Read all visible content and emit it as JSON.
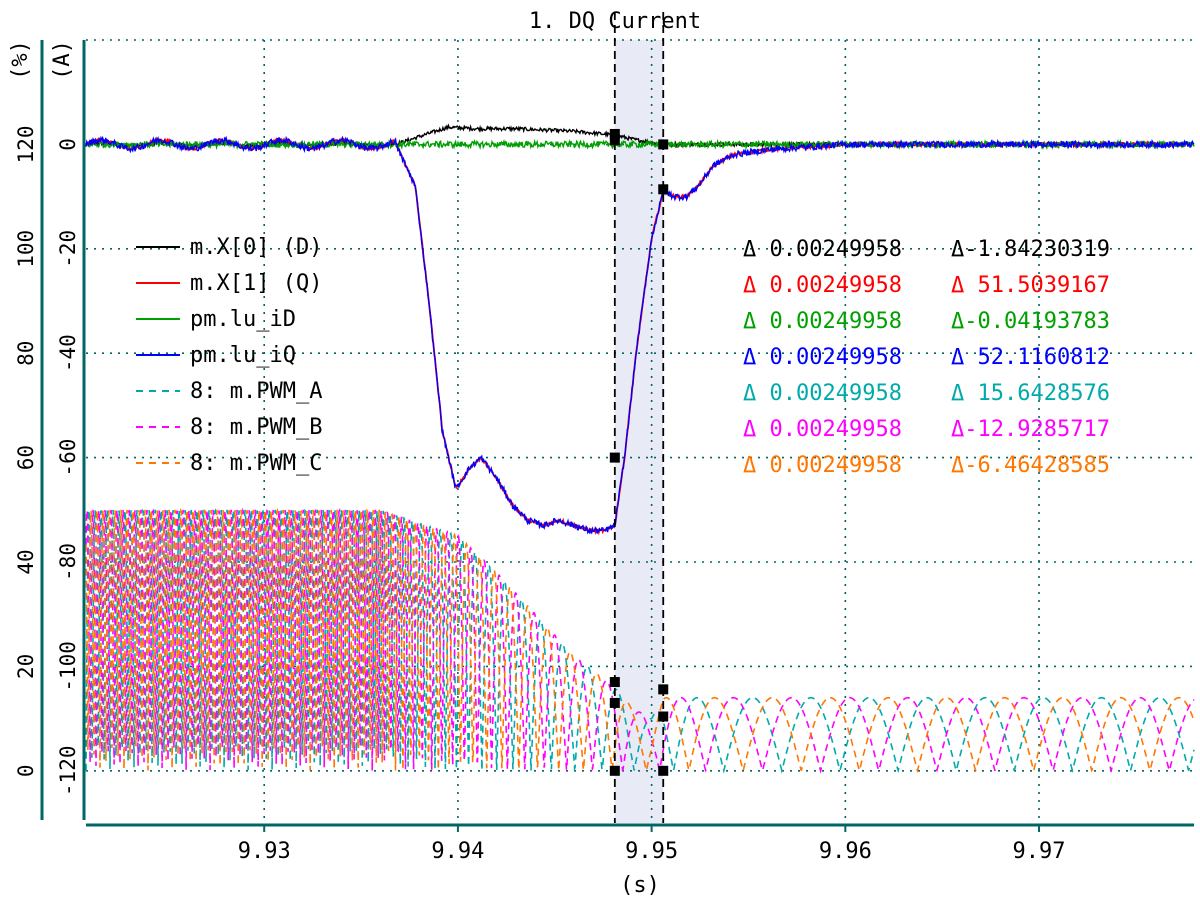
{
  "chart_data": {
    "type": "line",
    "title": "1. DQ Current",
    "xlabel": "(s)",
    "ylabel_left": "(%)",
    "ylabel_right": "(A)",
    "xlim": [
      9.9208,
      9.978
    ],
    "ylim_A": [
      -130,
      20
    ],
    "ylim_pct": [
      -10,
      140
    ],
    "x_ticks": [
      "9.93",
      "9.94",
      "9.95",
      "9.96",
      "9.97"
    ],
    "x_tick_values": [
      9.93,
      9.94,
      9.95,
      9.96,
      9.97
    ],
    "y_ticks_pct": [
      "0",
      "20",
      "40",
      "60",
      "80",
      "100",
      "120"
    ],
    "y_ticks_A": [
      "-120",
      "-100",
      "-80",
      "-60",
      "-40",
      "-20",
      "0"
    ],
    "grid": true,
    "legend_position": "left",
    "cursor_positions": [
      9.9481,
      9.9506
    ],
    "series": [
      {
        "name": "m.X[0] (D)",
        "color": "#000000",
        "axis": "A",
        "style": "solid"
      },
      {
        "name": "m.X[1] (Q)",
        "color": "#ff0000",
        "axis": "A",
        "style": "solid"
      },
      {
        "name": "pm.lu_iD",
        "color": "#00a000",
        "axis": "A",
        "style": "solid"
      },
      {
        "name": "pm.lu_iQ",
        "color": "#0000ff",
        "axis": "A",
        "style": "solid"
      },
      {
        "name": "8: m.PWM_A",
        "color": "#00aaaa",
        "axis": "pct",
        "style": "dashed"
      },
      {
        "name": "8: m.PWM_B",
        "color": "#ff00ff",
        "axis": "pct",
        "style": "dashed"
      },
      {
        "name": "8: m.PWM_C",
        "color": "#ff7700",
        "axis": "pct",
        "style": "dashed"
      }
    ],
    "q_profile": {
      "x": [
        9.9208,
        9.9368,
        9.9378,
        9.9385,
        9.9392,
        9.9399,
        9.9406,
        9.9412,
        9.942,
        9.9428,
        9.9436,
        9.9444,
        9.9452,
        9.946,
        9.9468,
        9.9476,
        9.9481,
        9.9486,
        9.9492,
        9.95,
        9.9506,
        9.9512,
        9.9518,
        9.9524,
        9.9532,
        9.9542,
        9.956,
        9.96,
        9.978
      ],
      "y": [
        0,
        0,
        -8,
        -30,
        -55,
        -66,
        -62,
        -60,
        -64,
        -69,
        -72,
        -73,
        -72,
        -73,
        -74,
        -74,
        -73,
        -60,
        -40,
        -18,
        -9,
        -10,
        -10,
        -8,
        -4,
        -2,
        -1,
        0,
        0
      ]
    },
    "d_profile": {
      "x": [
        9.9208,
        9.9368,
        9.938,
        9.9395,
        9.941,
        9.943,
        9.946,
        9.9481,
        9.949,
        9.9506,
        9.978
      ],
      "y": [
        0,
        0,
        1.5,
        3.3,
        3.0,
        3.0,
        2.5,
        1.8,
        1.0,
        0,
        0
      ]
    },
    "pwm_amplitude_profile": {
      "x": [
        9.9208,
        9.936,
        9.94,
        9.942,
        9.944,
        9.946,
        9.9481,
        9.949,
        9.95,
        9.9506,
        9.978
      ],
      "y": [
        50,
        50,
        45,
        38,
        30,
        22,
        16,
        12,
        10,
        14,
        14
      ]
    },
    "pwm_period_profile": {
      "x": [
        9.9208,
        9.936,
        9.94,
        9.944,
        9.948,
        9.95,
        9.954,
        9.978
      ],
      "y": [
        0.00031,
        0.00031,
        0.0006,
        0.001,
        0.0016,
        0.002,
        0.003,
        0.003
      ]
    },
    "cursor_markers": [
      {
        "x": 9.9481,
        "y": 0.8,
        "axis": "A"
      },
      {
        "x": 9.9481,
        "y": 2.0,
        "axis": "A"
      },
      {
        "x": 9.9481,
        "y": -60,
        "axis": "A"
      },
      {
        "x": 9.9506,
        "y": 0,
        "axis": "A"
      },
      {
        "x": 9.9506,
        "y": -8.6,
        "axis": "A"
      },
      {
        "x": 9.9481,
        "y": 17,
        "axis": "pct"
      },
      {
        "x": 9.9481,
        "y": 13,
        "axis": "pct"
      },
      {
        "x": 9.9481,
        "y": 0,
        "axis": "pct"
      },
      {
        "x": 9.9506,
        "y": 15.6,
        "axis": "pct"
      },
      {
        "x": 9.9506,
        "y": 10.4,
        "axis": "pct"
      },
      {
        "x": 9.9506,
        "y": 0,
        "axis": "pct"
      }
    ],
    "delta_readouts": [
      {
        "dx": "Δ 0.00249958",
        "dy": "Δ-1.84230319",
        "color": "#000000"
      },
      {
        "dx": "Δ 0.00249958",
        "dy": "Δ 51.5039167",
        "color": "#ff0000"
      },
      {
        "dx": "Δ 0.00249958",
        "dy": "Δ-0.04193783",
        "color": "#00a000"
      },
      {
        "dx": "Δ 0.00249958",
        "dy": "Δ 52.1160812",
        "color": "#0000ff"
      },
      {
        "dx": "Δ 0.00249958",
        "dy": "Δ 15.6428576",
        "color": "#00aaaa"
      },
      {
        "dx": "Δ 0.00249958",
        "dy": "Δ-12.9285717",
        "color": "#ff00ff"
      },
      {
        "dx": "Δ 0.00249958",
        "dy": "Δ-6.46428585",
        "color": "#ff7700"
      }
    ],
    "colors": {
      "axis": "#006666",
      "grid": "#006666",
      "cursor_band": "#e8eaf6",
      "text": "#000000"
    }
  }
}
